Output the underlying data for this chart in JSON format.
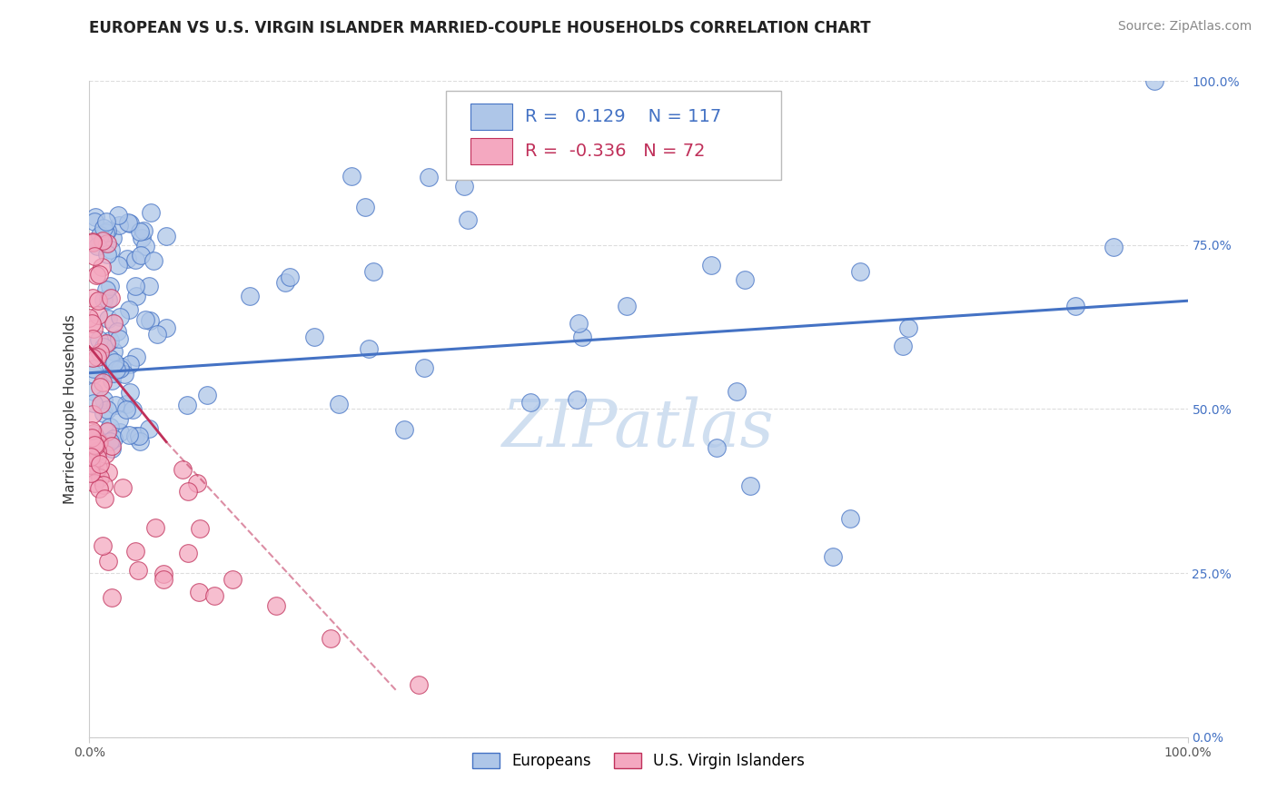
{
  "title": "EUROPEAN VS U.S. VIRGIN ISLANDER MARRIED-COUPLE HOUSEHOLDS CORRELATION CHART",
  "source": "Source: ZipAtlas.com",
  "ylabel": "Married-couple Households",
  "xlim": [
    0,
    1.0
  ],
  "ylim": [
    0,
    1.0
  ],
  "xtick_labels": [
    "0.0%",
    "100.0%"
  ],
  "ytick_labels": [
    "0.0%",
    "25.0%",
    "50.0%",
    "75.0%",
    "100.0%"
  ],
  "ytick_positions": [
    0.0,
    0.25,
    0.5,
    0.75,
    1.0
  ],
  "watermark": "ZIPatlas",
  "blue_r": 0.129,
  "blue_n": 117,
  "pink_r": -0.336,
  "pink_n": 72,
  "blue_color": "#aec6e8",
  "blue_edge_color": "#4472c4",
  "pink_color": "#f4a8c0",
  "pink_edge_color": "#c0305a",
  "legend_blue_label": "Europeans",
  "legend_pink_label": "U.S. Virgin Islanders",
  "title_fontsize": 12,
  "source_fontsize": 10,
  "axis_label_fontsize": 11,
  "tick_fontsize": 10,
  "legend_fontsize": 12,
  "watermark_fontsize": 52,
  "watermark_color": "#d0dff0",
  "background_color": "#ffffff",
  "grid_color": "#dddddd"
}
